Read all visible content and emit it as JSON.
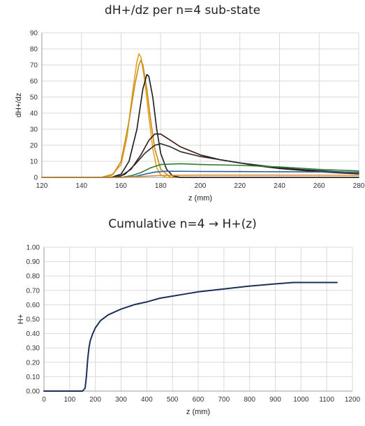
{
  "chart_data": [
    {
      "type": "line",
      "title": "dH+/dz per n=4 sub-state",
      "xlabel": "z (mm)",
      "ylabel": "dH+/dz",
      "xlim": [
        120,
        280
      ],
      "ylim": [
        0,
        90
      ],
      "xticks": [
        120,
        140,
        160,
        180,
        200,
        220,
        240,
        260,
        280
      ],
      "yticks": [
        0,
        10,
        20,
        30,
        40,
        50,
        60,
        70,
        80,
        90
      ],
      "grid": true,
      "legend": "none",
      "series": [
        {
          "color": "#e8a020",
          "points": [
            [
              120,
              0
            ],
            [
              150,
              0
            ],
            [
              155,
              1
            ],
            [
              160,
              8
            ],
            [
              163,
              25
            ],
            [
              166,
              55
            ],
            [
              168,
              72
            ],
            [
              169,
              77
            ],
            [
              170,
              75
            ],
            [
              172,
              60
            ],
            [
              174,
              38
            ],
            [
              176,
              18
            ],
            [
              178,
              6
            ],
            [
              180,
              1.5
            ],
            [
              183,
              0
            ],
            [
              280,
              0
            ]
          ]
        },
        {
          "color": "#c68a1a",
          "points": [
            [
              120,
              0
            ],
            [
              150,
              0
            ],
            [
              156,
              2
            ],
            [
              160,
              10
            ],
            [
              164,
              35
            ],
            [
              167,
              58
            ],
            [
              169,
              70
            ],
            [
              170,
              73
            ],
            [
              171,
              70
            ],
            [
              173,
              55
            ],
            [
              175,
              35
            ],
            [
              177,
              18
            ],
            [
              180,
              5
            ],
            [
              185,
              0
            ],
            [
              280,
              0
            ]
          ]
        },
        {
          "color": "#1a1a1a",
          "points": [
            [
              120,
              0
            ],
            [
              155,
              0
            ],
            [
              160,
              2
            ],
            [
              164,
              10
            ],
            [
              168,
              30
            ],
            [
              171,
              55
            ],
            [
              173,
              64
            ],
            [
              174,
              63
            ],
            [
              176,
              50
            ],
            [
              178,
              30
            ],
            [
              180,
              15
            ],
            [
              183,
              5
            ],
            [
              186,
              1
            ],
            [
              190,
              0
            ],
            [
              280,
              0
            ]
          ]
        },
        {
          "color": "#3a1a10",
          "points": [
            [
              120,
              0
            ],
            [
              155,
              0
            ],
            [
              160,
              1
            ],
            [
              165,
              5
            ],
            [
              170,
              14
            ],
            [
              174,
              23
            ],
            [
              177,
              27
            ],
            [
              180,
              27
            ],
            [
              185,
              23
            ],
            [
              190,
              19
            ],
            [
              200,
              14
            ],
            [
              210,
              11
            ],
            [
              220,
              9
            ],
            [
              230,
              7
            ],
            [
              240,
              5.5
            ],
            [
              250,
              4.5
            ],
            [
              260,
              3.5
            ],
            [
              270,
              2.8
            ],
            [
              280,
              2.2
            ]
          ]
        },
        {
          "color": "#2a2a2a",
          "points": [
            [
              120,
              0
            ],
            [
              158,
              0
            ],
            [
              162,
              2
            ],
            [
              167,
              8
            ],
            [
              172,
              15
            ],
            [
              177,
              20
            ],
            [
              180,
              21
            ],
            [
              185,
              19
            ],
            [
              190,
              16
            ],
            [
              200,
              13
            ],
            [
              210,
              11
            ],
            [
              220,
              9
            ],
            [
              230,
              7.5
            ],
            [
              240,
              6
            ],
            [
              250,
              5
            ],
            [
              260,
              4.2
            ],
            [
              270,
              3.5
            ],
            [
              280,
              3
            ]
          ]
        },
        {
          "color": "#2e7d2e",
          "points": [
            [
              120,
              0
            ],
            [
              160,
              0
            ],
            [
              165,
              1
            ],
            [
              170,
              3
            ],
            [
              175,
              6
            ],
            [
              180,
              8
            ],
            [
              190,
              8.5
            ],
            [
              200,
              8
            ],
            [
              220,
              7.5
            ],
            [
              240,
              6.5
            ],
            [
              260,
              5
            ],
            [
              280,
              4
            ]
          ]
        },
        {
          "color": "#2a5fa0",
          "points": [
            [
              120,
              0
            ],
            [
              162,
              0
            ],
            [
              168,
              0.8
            ],
            [
              172,
              2
            ],
            [
              177,
              3.3
            ],
            [
              182,
              3.8
            ],
            [
              190,
              3.8
            ],
            [
              200,
              3.7
            ],
            [
              220,
              3.6
            ],
            [
              240,
              3.5
            ],
            [
              260,
              3.4
            ],
            [
              280,
              3.2
            ]
          ]
        },
        {
          "color": "#d98a30",
          "points": [
            [
              120,
              0
            ],
            [
              160,
              0
            ],
            [
              170,
              0.6
            ],
            [
              180,
              1.2
            ],
            [
              200,
              1.4
            ],
            [
              240,
              1.4
            ],
            [
              280,
              1.3
            ]
          ]
        }
      ]
    },
    {
      "type": "line",
      "title": "Cumulative n=4 → H+(z)",
      "xlabel": "z (mm)",
      "ylabel": "H+",
      "xlim": [
        0,
        1200
      ],
      "ylim": [
        0,
        1
      ],
      "xticks": [
        0,
        100,
        200,
        300,
        400,
        500,
        600,
        700,
        800,
        900,
        1000,
        1100,
        1200
      ],
      "yticks": [
        "0.00",
        "0.10",
        "0.20",
        "0.30",
        "0.40",
        "0.50",
        "0.60",
        "0.70",
        "0.80",
        "0.90",
        "1.00"
      ],
      "grid": true,
      "legend": "none",
      "series": [
        {
          "color": "#1c2f5a",
          "points": [
            [
              0,
              0
            ],
            [
              100,
              0
            ],
            [
              150,
              0
            ],
            [
              160,
              0.02
            ],
            [
              165,
              0.1
            ],
            [
              170,
              0.22
            ],
            [
              175,
              0.3
            ],
            [
              180,
              0.35
            ],
            [
              190,
              0.4
            ],
            [
              200,
              0.44
            ],
            [
              220,
              0.49
            ],
            [
              250,
              0.53
            ],
            [
              300,
              0.57
            ],
            [
              350,
              0.6
            ],
            [
              400,
              0.62
            ],
            [
              450,
              0.645
            ],
            [
              500,
              0.66
            ],
            [
              550,
              0.675
            ],
            [
              600,
              0.69
            ],
            [
              700,
              0.71
            ],
            [
              800,
              0.73
            ],
            [
              900,
              0.745
            ],
            [
              970,
              0.755
            ],
            [
              1000,
              0.755
            ],
            [
              1100,
              0.755
            ],
            [
              1140,
              0.755
            ]
          ]
        }
      ]
    }
  ]
}
